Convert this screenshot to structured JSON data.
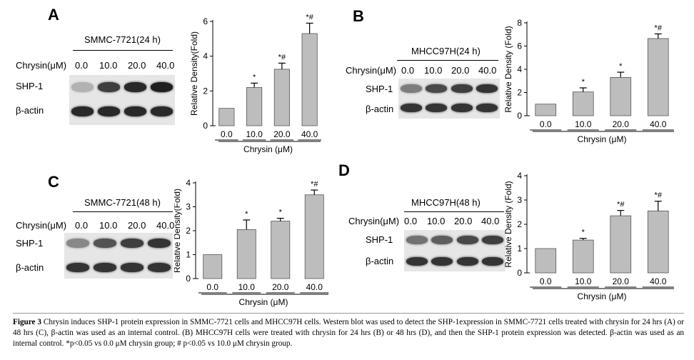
{
  "figure": {
    "caption_label": "Figure 3",
    "caption_text": " Chrysin induces SHP-1 protein expression in SMMC-7721 cells and MHCC97H cells. Western blot was used to detect the SHP-1expression in SMMC-7721 cells treated with chrysin for 24 hrs (A) or 48 hrs (C), β-actin was used as an internal control. (B) MHCC97H cells were treated with chrysin for 24 hrs (B) or 48 hrs (D), and then the SHP-1 protein expression was detected. β-actin was used as an internal control. *p<0.05 vs 0.0 μM chrysin group; # p<0.05 vs 10.0 μM chrysin group."
  },
  "panels": [
    {
      "letter": "A",
      "cell_line": "SMMC-7721(24 h)",
      "condition_label": "Chrysin(μM)",
      "doses": [
        "0.0",
        "10.0",
        "20.0",
        "40.0"
      ],
      "rows": [
        "SHP-1",
        "β-actin"
      ],
      "shp1_band_darkness": [
        0.25,
        0.8,
        0.9,
        0.95
      ],
      "actin_band_darkness": [
        0.9,
        0.9,
        0.9,
        0.9
      ]
    },
    {
      "letter": "B",
      "cell_line": "MHCC97H(24 h)",
      "condition_label": "Chrysin(μM)",
      "doses": [
        "0.0",
        "10.0",
        "20.0",
        "40.0"
      ],
      "rows": [
        "SHP-1",
        "β-actin"
      ],
      "shp1_band_darkness": [
        0.5,
        0.75,
        0.8,
        0.85
      ],
      "actin_band_darkness": [
        0.85,
        0.85,
        0.85,
        0.85
      ]
    },
    {
      "letter": "C",
      "cell_line": "SMMC-7721(48 h)",
      "condition_label": "Chrysin(μM)",
      "doses": [
        "0.0",
        "10.0",
        "20.0",
        "40.0"
      ],
      "rows": [
        "SHP-1",
        "β-actin"
      ],
      "shp1_band_darkness": [
        0.45,
        0.7,
        0.8,
        0.85
      ],
      "actin_band_darkness": [
        0.85,
        0.85,
        0.85,
        0.85
      ]
    },
    {
      "letter": "D",
      "cell_line": "MHCC97H(48 h)",
      "condition_label": "Chrysin(μM)",
      "doses": [
        "0.0",
        "10.0",
        "20.0",
        "40.0"
      ],
      "rows": [
        "SHP-1",
        "β-actin"
      ],
      "shp1_band_darkness": [
        0.55,
        0.65,
        0.75,
        0.8
      ],
      "actin_band_darkness": [
        0.85,
        0.85,
        0.85,
        0.85
      ]
    }
  ],
  "chart_data": [
    {
      "type": "bar",
      "panel": "A",
      "categories": [
        "0.0",
        "10.0",
        "20.0",
        "40.0"
      ],
      "values": [
        1.0,
        2.2,
        3.25,
        5.3
      ],
      "errors": [
        0,
        0.25,
        0.35,
        0.6
      ],
      "annotations": [
        "",
        "*",
        "*#",
        "*#"
      ],
      "xlabel": "Chrysin (μM)",
      "ylabel": "Relative Density(Fold)",
      "ylim": [
        0,
        6
      ],
      "yticks": [
        0,
        2,
        4,
        6
      ],
      "grid": false,
      "bar_color": "#bdbdbd"
    },
    {
      "type": "bar",
      "panel": "B",
      "categories": [
        "0.0",
        "10.0",
        "20.0",
        "40.0"
      ],
      "values": [
        1.0,
        2.05,
        3.3,
        6.65
      ],
      "errors": [
        0,
        0.35,
        0.45,
        0.4
      ],
      "annotations": [
        "",
        "*",
        "*",
        "*#"
      ],
      "xlabel": "Chrysin (μM)",
      "ylabel": "Relative Density (Fold)",
      "ylim": [
        0,
        8
      ],
      "yticks": [
        0,
        2,
        4,
        6,
        8
      ],
      "grid": false,
      "bar_color": "#bdbdbd"
    },
    {
      "type": "bar",
      "panel": "C",
      "categories": [
        "0.0",
        "10.0",
        "20.0",
        "40.0"
      ],
      "values": [
        1.0,
        2.05,
        2.4,
        3.5
      ],
      "errors": [
        0,
        0.4,
        0.12,
        0.2
      ],
      "annotations": [
        "",
        "*",
        "*",
        "*#"
      ],
      "xlabel": "Chrysin (μM)",
      "ylabel": "Relative Density(Fold)",
      "ylim": [
        0,
        4
      ],
      "yticks": [
        0,
        1,
        2,
        3,
        4
      ],
      "grid": false,
      "bar_color": "#bdbdbd"
    },
    {
      "type": "bar",
      "panel": "D",
      "categories": [
        "0.0",
        "10.0",
        "20.0",
        "40.0"
      ],
      "values": [
        1.0,
        1.35,
        2.35,
        2.55
      ],
      "errors": [
        0,
        0.07,
        0.22,
        0.4
      ],
      "annotations": [
        "",
        "*",
        "*#",
        "*#"
      ],
      "xlabel": "Chrysin (μM)",
      "ylabel": "Relative Density (Fold)",
      "ylim": [
        0,
        4
      ],
      "yticks": [
        0,
        1,
        2,
        3,
        4
      ],
      "grid": false,
      "bar_color": "#bdbdbd"
    }
  ]
}
